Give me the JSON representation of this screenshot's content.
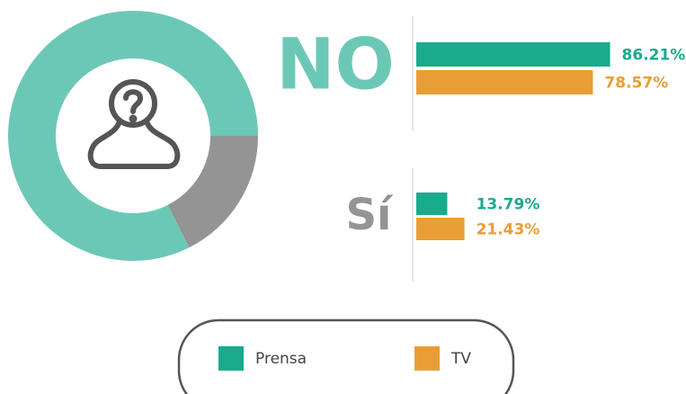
{
  "chart_data": [
    {
      "type": "donut",
      "values": [
        82.4,
        17.6
      ],
      "colors": [
        "#6cc8b6",
        "#949494"
      ]
    },
    {
      "type": "bar",
      "categories": [
        "NO",
        "Sí"
      ],
      "category_colors": [
        "#6cc8b6",
        "#949494"
      ],
      "series": [
        {
          "name": "Prensa",
          "color": "#1aaa8c",
          "values": [
            86.21,
            13.79
          ],
          "value_labels": [
            "86.21%",
            "13.79%"
          ]
        },
        {
          "name": "TV",
          "color": "#e99e35",
          "values": [
            78.57,
            21.43
          ],
          "value_labels": [
            "78.57%",
            "21.43%"
          ]
        }
      ],
      "xlim": [
        0,
        100
      ]
    }
  ]
}
